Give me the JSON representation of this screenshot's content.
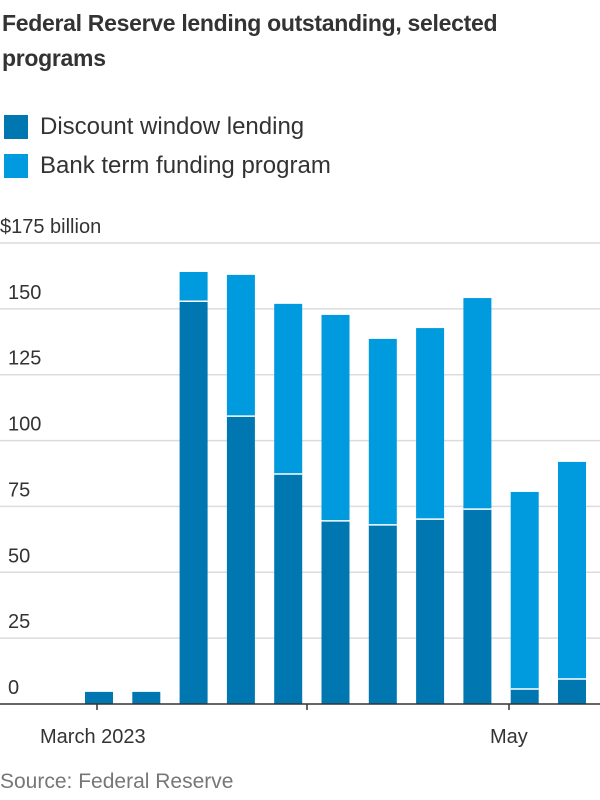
{
  "title": "Federal Reserve lending outstanding, selected programs",
  "source": "Source: Federal Reserve",
  "colors": {
    "discount": "#0077b0",
    "btfp": "#009ade"
  },
  "chart_data": {
    "type": "bar",
    "stacked": true,
    "title": "Federal Reserve lending outstanding, selected programs",
    "ylabel": "$175 billion",
    "ylim": [
      0,
      175
    ],
    "yticks": [
      0,
      25,
      50,
      75,
      100,
      125,
      150,
      175
    ],
    "ytick_labels": [
      "0",
      "25",
      "50",
      "75",
      "100",
      "125",
      "150",
      "$175 billion"
    ],
    "xtick_labels": [
      "March 2023",
      "May"
    ],
    "categories": [
      "1",
      "2",
      "3",
      "4",
      "5",
      "6",
      "7",
      "8",
      "9",
      "10",
      "11"
    ],
    "series": [
      {
        "name": "Discount window lending",
        "values": [
          4.6,
          4.6,
          152.9,
          109.3,
          87.3,
          69.5,
          68.0,
          70.2,
          74.0,
          5.7,
          9.5
        ]
      },
      {
        "name": "Bank term funding program",
        "values": [
          0,
          0,
          11.1,
          53.6,
          64.6,
          78.2,
          70.6,
          72.5,
          80.1,
          74.8,
          82.4
        ]
      }
    ],
    "grid": true,
    "legend": "top-left"
  }
}
